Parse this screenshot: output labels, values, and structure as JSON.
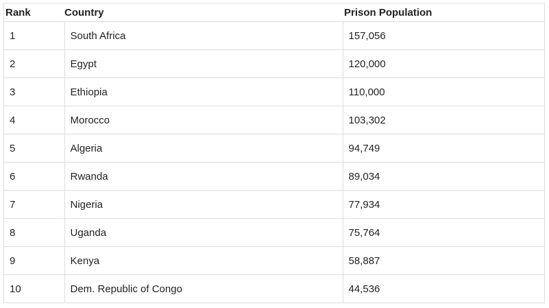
{
  "headers": [
    "Rank",
    "Country",
    "Prison Population"
  ],
  "rows": [
    [
      "1",
      "South Africa",
      "157,056"
    ],
    [
      "2",
      "Egypt",
      "120,000"
    ],
    [
      "3",
      "Ethiopia",
      "110,000"
    ],
    [
      "4",
      "Morocco",
      "103,302"
    ],
    [
      "5",
      "Algeria",
      "94,749"
    ],
    [
      "6",
      "Rwanda",
      "89,034"
    ],
    [
      "7",
      "Nigeria",
      "77,934"
    ],
    [
      "8",
      "Uganda",
      "75,764"
    ],
    [
      "9",
      "Kenya",
      "58,887"
    ],
    [
      "10",
      "Dem. Republic of Congo",
      "44,536"
    ]
  ]
}
